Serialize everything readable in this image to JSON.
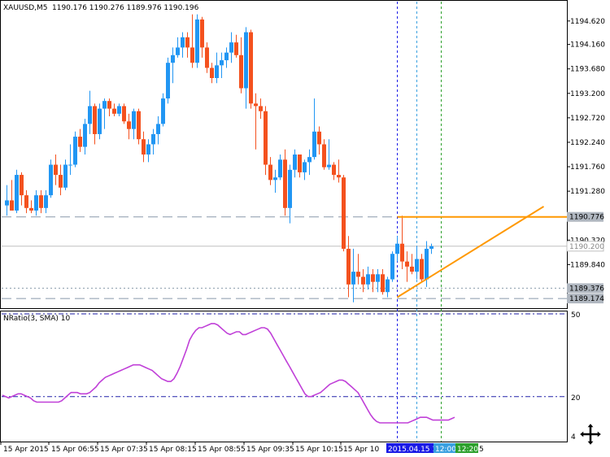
{
  "header": {
    "symbol": "XAUUSD,M5",
    "ohlc": "1190.176 1190.276 1189.976 1190.196"
  },
  "indicator": {
    "name": "NRatio(3, SMA) 10",
    "levels_text": [
      "50",
      "20",
      "4"
    ]
  },
  "price_axis": {
    "ticks": [
      "1194.620",
      "1194.160",
      "1193.680",
      "1193.200",
      "1192.720",
      "1192.240",
      "1191.760",
      "1191.280",
      "1190.320",
      "1189.840"
    ],
    "labels": {
      "high_line": "1190.776",
      "current": "1190.200",
      "level_1": "1189.376",
      "level_2": "1189.174"
    }
  },
  "time_axis": {
    "ticks": [
      "15 Apr 2015",
      "15 Apr 06:55",
      "15 Apr 07:35",
      "15 Apr 08:15",
      "15 Apr 08:55",
      "15 Apr 09:35",
      "15 Apr 10:15",
      "15 Apr 10"
    ],
    "markers": [
      "2015.04.15 11:45",
      "12:00",
      "12:20"
    ],
    "trailing": "5"
  },
  "colors": {
    "bull": "#2196f3",
    "bear": "#f4511e",
    "indicator": "#c040d8",
    "trendline": "#ff9800",
    "grid_dash": "#8899aa",
    "marker_blue": "#1a1ae6",
    "marker_cyan": "#39a0e0",
    "marker_green": "#2ca02c"
  },
  "chart_data": {
    "type": "candlestick",
    "ylim": [
      1189.0,
      1195.0
    ],
    "candles": [
      {
        "o": 1191.0,
        "h": 1191.4,
        "l": 1190.8,
        "c": 1191.1
      },
      {
        "o": 1191.1,
        "h": 1191.5,
        "l": 1190.9,
        "c": 1190.9
      },
      {
        "o": 1190.9,
        "h": 1191.7,
        "l": 1190.85,
        "c": 1191.6
      },
      {
        "o": 1191.6,
        "h": 1191.65,
        "l": 1191.0,
        "c": 1191.2
      },
      {
        "o": 1191.2,
        "h": 1191.3,
        "l": 1190.85,
        "c": 1190.95
      },
      {
        "o": 1190.95,
        "h": 1191.1,
        "l": 1190.85,
        "c": 1190.9
      },
      {
        "o": 1190.9,
        "h": 1191.3,
        "l": 1190.8,
        "c": 1191.2
      },
      {
        "o": 1191.2,
        "h": 1191.3,
        "l": 1190.85,
        "c": 1190.95
      },
      {
        "o": 1190.95,
        "h": 1191.3,
        "l": 1190.85,
        "c": 1191.2
      },
      {
        "o": 1191.2,
        "h": 1191.9,
        "l": 1191.15,
        "c": 1191.8
      },
      {
        "o": 1191.8,
        "h": 1192.0,
        "l": 1191.4,
        "c": 1191.6
      },
      {
        "o": 1191.6,
        "h": 1191.8,
        "l": 1191.2,
        "c": 1191.35
      },
      {
        "o": 1191.35,
        "h": 1191.9,
        "l": 1191.3,
        "c": 1191.8
      },
      {
        "o": 1191.8,
        "h": 1192.2,
        "l": 1191.6,
        "c": 1191.8
      },
      {
        "o": 1191.8,
        "h": 1192.45,
        "l": 1191.75,
        "c": 1192.35
      },
      {
        "o": 1192.35,
        "h": 1192.5,
        "l": 1192.05,
        "c": 1192.15
      },
      {
        "o": 1192.15,
        "h": 1192.7,
        "l": 1192.0,
        "c": 1192.6
      },
      {
        "o": 1192.6,
        "h": 1193.25,
        "l": 1192.4,
        "c": 1192.95
      },
      {
        "o": 1192.95,
        "h": 1193.0,
        "l": 1192.2,
        "c": 1192.4
      },
      {
        "o": 1192.4,
        "h": 1193.0,
        "l": 1192.3,
        "c": 1192.9
      },
      {
        "o": 1192.9,
        "h": 1193.1,
        "l": 1192.5,
        "c": 1193.05
      },
      {
        "o": 1193.05,
        "h": 1193.1,
        "l": 1192.75,
        "c": 1192.9
      },
      {
        "o": 1192.9,
        "h": 1193.0,
        "l": 1192.75,
        "c": 1192.8
      },
      {
        "o": 1192.8,
        "h": 1193.0,
        "l": 1192.75,
        "c": 1192.95
      },
      {
        "o": 1192.95,
        "h": 1193.0,
        "l": 1192.6,
        "c": 1192.65
      },
      {
        "o": 1192.65,
        "h": 1192.8,
        "l": 1192.3,
        "c": 1192.5
      },
      {
        "o": 1192.5,
        "h": 1192.9,
        "l": 1192.3,
        "c": 1192.85
      },
      {
        "o": 1192.85,
        "h": 1192.9,
        "l": 1192.2,
        "c": 1192.3
      },
      {
        "o": 1192.3,
        "h": 1192.45,
        "l": 1191.85,
        "c": 1192.0
      },
      {
        "o": 1192.0,
        "h": 1192.3,
        "l": 1191.85,
        "c": 1192.2
      },
      {
        "o": 1192.2,
        "h": 1192.5,
        "l": 1192.0,
        "c": 1192.4
      },
      {
        "o": 1192.4,
        "h": 1192.75,
        "l": 1192.2,
        "c": 1192.6
      },
      {
        "o": 1192.6,
        "h": 1193.2,
        "l": 1192.55,
        "c": 1193.1
      },
      {
        "o": 1193.1,
        "h": 1193.9,
        "l": 1193.0,
        "c": 1193.8
      },
      {
        "o": 1193.8,
        "h": 1194.1,
        "l": 1193.4,
        "c": 1193.95
      },
      {
        "o": 1193.95,
        "h": 1194.3,
        "l": 1193.9,
        "c": 1194.1
      },
      {
        "o": 1194.1,
        "h": 1194.4,
        "l": 1193.9,
        "c": 1194.3
      },
      {
        "o": 1194.3,
        "h": 1194.4,
        "l": 1193.9,
        "c": 1194.1
      },
      {
        "o": 1194.1,
        "h": 1194.75,
        "l": 1193.7,
        "c": 1193.8
      },
      {
        "o": 1193.8,
        "h": 1194.75,
        "l": 1193.7,
        "c": 1194.65
      },
      {
        "o": 1194.65,
        "h": 1194.7,
        "l": 1193.9,
        "c": 1194.1
      },
      {
        "o": 1194.1,
        "h": 1194.2,
        "l": 1193.6,
        "c": 1193.7
      },
      {
        "o": 1193.7,
        "h": 1193.8,
        "l": 1193.4,
        "c": 1193.5
      },
      {
        "o": 1193.5,
        "h": 1194.0,
        "l": 1193.4,
        "c": 1193.75
      },
      {
        "o": 1193.75,
        "h": 1194.0,
        "l": 1193.5,
        "c": 1193.85
      },
      {
        "o": 1193.85,
        "h": 1194.1,
        "l": 1193.7,
        "c": 1194.0
      },
      {
        "o": 1194.0,
        "h": 1194.4,
        "l": 1193.8,
        "c": 1194.2
      },
      {
        "o": 1194.2,
        "h": 1194.35,
        "l": 1193.9,
        "c": 1193.95
      },
      {
        "o": 1193.95,
        "h": 1194.3,
        "l": 1193.2,
        "c": 1193.3
      },
      {
        "o": 1193.3,
        "h": 1194.5,
        "l": 1192.9,
        "c": 1194.4
      },
      {
        "o": 1194.4,
        "h": 1194.45,
        "l": 1192.9,
        "c": 1193.0
      },
      {
        "o": 1193.0,
        "h": 1193.2,
        "l": 1192.1,
        "c": 1192.95
      },
      {
        "o": 1192.95,
        "h": 1193.1,
        "l": 1192.7,
        "c": 1192.85
      },
      {
        "o": 1192.85,
        "h": 1192.95,
        "l": 1191.6,
        "c": 1191.8
      },
      {
        "o": 1191.8,
        "h": 1191.95,
        "l": 1191.4,
        "c": 1191.5
      },
      {
        "o": 1191.5,
        "h": 1191.7,
        "l": 1191.25,
        "c": 1191.55
      },
      {
        "o": 1191.55,
        "h": 1192.0,
        "l": 1191.5,
        "c": 1191.9
      },
      {
        "o": 1191.9,
        "h": 1192.1,
        "l": 1190.8,
        "c": 1190.95
      },
      {
        "o": 1190.95,
        "h": 1191.8,
        "l": 1190.65,
        "c": 1191.7
      },
      {
        "o": 1191.7,
        "h": 1192.1,
        "l": 1191.55,
        "c": 1192.0
      },
      {
        "o": 1192.0,
        "h": 1192.0,
        "l": 1191.55,
        "c": 1191.65
      },
      {
        "o": 1191.65,
        "h": 1191.9,
        "l": 1191.5,
        "c": 1191.85
      },
      {
        "o": 1191.85,
        "h": 1192.1,
        "l": 1191.6,
        "c": 1191.95
      },
      {
        "o": 1191.95,
        "h": 1193.1,
        "l": 1191.9,
        "c": 1192.45
      },
      {
        "o": 1192.45,
        "h": 1192.55,
        "l": 1192.0,
        "c": 1192.2
      },
      {
        "o": 1192.2,
        "h": 1192.3,
        "l": 1191.7,
        "c": 1191.75
      },
      {
        "o": 1191.75,
        "h": 1192.3,
        "l": 1191.7,
        "c": 1191.8
      },
      {
        "o": 1191.8,
        "h": 1191.85,
        "l": 1191.5,
        "c": 1191.6
      },
      {
        "o": 1191.6,
        "h": 1191.9,
        "l": 1191.45,
        "c": 1191.55
      },
      {
        "o": 1191.55,
        "h": 1191.6,
        "l": 1190.1,
        "c": 1190.15
      },
      {
        "o": 1190.15,
        "h": 1190.4,
        "l": 1189.2,
        "c": 1189.45
      },
      {
        "o": 1189.45,
        "h": 1190.15,
        "l": 1189.1,
        "c": 1189.7
      },
      {
        "o": 1189.7,
        "h": 1190.05,
        "l": 1189.45,
        "c": 1189.6
      },
      {
        "o": 1189.6,
        "h": 1189.75,
        "l": 1189.3,
        "c": 1189.45
      },
      {
        "o": 1189.45,
        "h": 1189.8,
        "l": 1189.35,
        "c": 1189.65
      },
      {
        "o": 1189.65,
        "h": 1189.75,
        "l": 1189.3,
        "c": 1189.5
      },
      {
        "o": 1189.5,
        "h": 1189.75,
        "l": 1189.3,
        "c": 1189.65
      },
      {
        "o": 1189.65,
        "h": 1189.75,
        "l": 1189.25,
        "c": 1189.3
      },
      {
        "o": 1189.3,
        "h": 1189.6,
        "l": 1189.2,
        "c": 1189.55
      },
      {
        "o": 1189.55,
        "h": 1190.1,
        "l": 1189.5,
        "c": 1190.05
      },
      {
        "o": 1190.05,
        "h": 1190.4,
        "l": 1189.9,
        "c": 1190.25
      },
      {
        "o": 1190.25,
        "h": 1190.8,
        "l": 1189.75,
        "c": 1189.9
      },
      {
        "o": 1189.9,
        "h": 1190.1,
        "l": 1189.5,
        "c": 1189.8
      },
      {
        "o": 1189.8,
        "h": 1190.05,
        "l": 1189.65,
        "c": 1189.7
      },
      {
        "o": 1189.7,
        "h": 1190.2,
        "l": 1189.55,
        "c": 1189.95
      },
      {
        "o": 1189.95,
        "h": 1190.05,
        "l": 1189.5,
        "c": 1189.55
      },
      {
        "o": 1189.55,
        "h": 1190.3,
        "l": 1189.4,
        "c": 1190.15
      },
      {
        "o": 1190.15,
        "h": 1190.25,
        "l": 1190.05,
        "c": 1190.2
      }
    ],
    "horizontal_levels": [
      1190.776,
      1189.376,
      1189.174
    ],
    "current_price": 1190.2,
    "trendline": [
      {
        "bar": 80,
        "price": 1189.2
      },
      {
        "bar": 110,
        "price": 1190.98
      }
    ],
    "vertical_marker_bars": [
      80,
      84,
      89
    ],
    "indicator": {
      "name": "NRatio(3, SMA) 10",
      "levels": [
        50,
        20
      ],
      "ylim": [
        4,
        50
      ],
      "values": [
        20.5,
        20,
        19.5,
        20,
        20.5,
        21,
        21,
        20.5,
        20,
        19.5,
        18.5,
        18,
        18,
        18,
        18,
        18,
        18,
        18,
        18,
        18.5,
        19.5,
        20.5,
        21.5,
        21.5,
        21.5,
        21,
        21,
        21,
        21.5,
        22.5,
        23.5,
        25,
        26,
        27,
        27.5,
        28,
        28.5,
        29,
        29.5,
        30,
        30.5,
        31,
        31.5,
        31.5,
        31.5,
        31,
        30.5,
        30,
        29.5,
        28.5,
        27.5,
        26.5,
        26,
        25.5,
        25.5,
        26.5,
        28.5,
        31,
        34,
        37,
        40.5,
        42.5,
        44,
        45,
        45,
        45.5,
        46,
        46.5,
        46.5,
        46,
        45,
        44,
        43,
        42.5,
        43,
        43.5,
        43.5,
        42.5,
        42.5,
        43,
        43.5,
        44,
        44.5,
        45,
        45,
        44.5,
        43,
        41,
        39,
        37,
        35,
        33,
        31,
        29,
        27,
        25,
        23,
        21,
        20,
        20,
        20.5,
        21,
        21.5,
        22.5,
        23.5,
        24.5,
        25,
        25.5,
        26,
        26,
        25.5,
        24.5,
        23.5,
        22.5,
        21.5,
        19.5,
        17.5,
        15.5,
        13.5,
        12,
        11,
        10.5,
        10.5,
        10.5,
        10.5,
        10.5,
        10.5,
        10.5,
        10.5,
        10.5,
        10.5,
        11,
        11.5,
        12,
        12.5,
        12.5,
        12.5,
        12,
        11.5,
        11.5,
        11.5,
        11.5,
        11.5,
        11.5,
        12,
        12.5
      ]
    }
  }
}
